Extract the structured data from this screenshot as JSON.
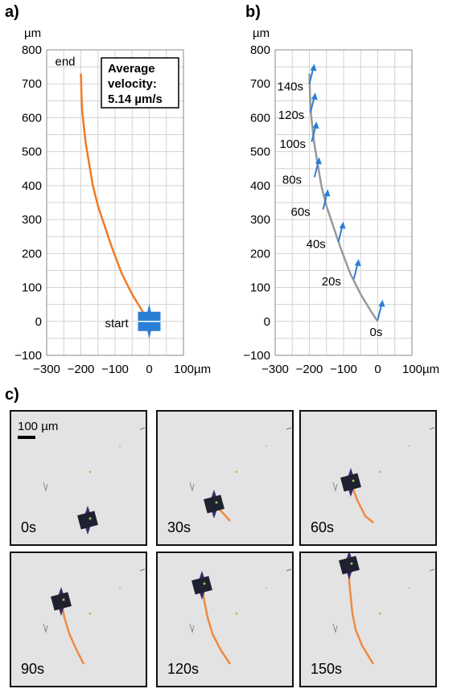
{
  "panels": {
    "a": "a)",
    "b": "b)",
    "c": "c)"
  },
  "colors": {
    "trajectory": "#f07a24",
    "gray_path": "#999999",
    "arrow": "#2a7fd4",
    "robot": "#2a7fd4",
    "frame_bg": "#e3e3e3",
    "frame_border": "#111111"
  },
  "chart_data": [
    {
      "type": "line",
      "panel": "a",
      "unit_label": "µm",
      "x_unit_label": "100µm",
      "xlim": [
        -300,
        100
      ],
      "ylim": [
        -100,
        800
      ],
      "x_ticks": [
        "−300",
        "−200",
        "−100",
        "0"
      ],
      "y_ticks": [
        "−100",
        "0",
        "100",
        "200",
        "300",
        "400",
        "500",
        "600",
        "700",
        "800"
      ],
      "grid": true,
      "series": [
        {
          "x": [
            0,
            -20,
            -50,
            -80,
            -110,
            -130,
            -150,
            -165,
            -175,
            -185,
            -192,
            -196,
            -198,
            -199,
            -200
          ],
          "y": [
            0,
            30,
            80,
            140,
            220,
            280,
            340,
            400,
            460,
            520,
            580,
            620,
            660,
            700,
            730
          ]
        }
      ],
      "annotations": {
        "start": "start",
        "end": "end"
      },
      "info_box": "Average velocity: 5.14 µm/s"
    },
    {
      "type": "line",
      "panel": "b",
      "unit_label": "µm",
      "x_unit_label": "100µm",
      "xlim": [
        -300,
        100
      ],
      "ylim": [
        -100,
        800
      ],
      "x_ticks": [
        "−300",
        "−200",
        "−100",
        "0"
      ],
      "y_ticks": [
        "−100",
        "0",
        "100",
        "200",
        "300",
        "400",
        "500",
        "600",
        "700",
        "800"
      ],
      "grid": true,
      "series": [
        {
          "x": [
            0,
            -20,
            -50,
            -80,
            -110,
            -130,
            -150,
            -165,
            -175,
            -185,
            -192,
            -196,
            -198,
            -199,
            -200
          ],
          "y": [
            0,
            30,
            80,
            140,
            220,
            280,
            340,
            400,
            460,
            520,
            580,
            620,
            660,
            700,
            730
          ]
        }
      ],
      "time_markers": [
        {
          "label": "0s",
          "x": 0,
          "y": 0
        },
        {
          "label": "20s",
          "x": -70,
          "y": 120
        },
        {
          "label": "40s",
          "x": -115,
          "y": 230
        },
        {
          "label": "60s",
          "x": -160,
          "y": 325
        },
        {
          "label": "80s",
          "x": -185,
          "y": 420
        },
        {
          "label": "100s",
          "x": -193,
          "y": 525
        },
        {
          "label": "120s",
          "x": -197,
          "y": 610
        },
        {
          "label": "140s",
          "x": -200,
          "y": 695
        }
      ]
    }
  ],
  "frames": {
    "scale_label": "100 µm",
    "items": [
      {
        "time": "0s"
      },
      {
        "time": "30s"
      },
      {
        "time": "60s"
      },
      {
        "time": "90s"
      },
      {
        "time": "120s"
      },
      {
        "time": "150s"
      }
    ]
  }
}
